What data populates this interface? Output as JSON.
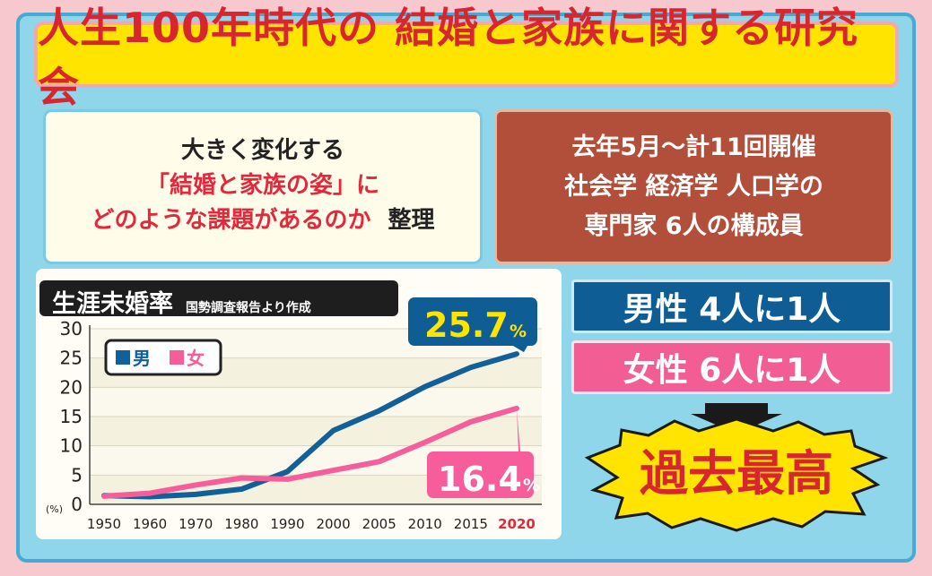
{
  "title": "人生100年時代の 結婚と家族に関する研究会",
  "intro": {
    "line1": "大きく変化する",
    "line2": "「結婚と家族の姿」に",
    "line3a": "どのような課題があるのか",
    "line3b": "整理"
  },
  "info": {
    "line1": "去年5月〜計11回開催",
    "line2": "社会学 経済学 人口学の",
    "line3": "専門家 6人の構成員"
  },
  "men_stat": "男性 4人に1人",
  "women_stat": "女性 6人に1人",
  "conclusion": "過去最高",
  "colors": {
    "men": "#11609a",
    "women": "#f65d9a",
    "highlight_year": "#e3283b"
  },
  "chart_data": {
    "type": "line",
    "title": "生涯未婚率",
    "subtitle": "国勢調査報告より作成",
    "y_unit": "(%)",
    "categories": [
      "1950",
      "1960",
      "1970",
      "1980",
      "1990",
      "2000",
      "2005",
      "2010",
      "2015",
      "2020"
    ],
    "highlight_category": "2020",
    "ylim": [
      0,
      30
    ],
    "y_ticks": [
      "0",
      "5",
      "10",
      "15",
      "20",
      "25",
      "30"
    ],
    "series": [
      {
        "name": "男",
        "values": [
          1.5,
          1.3,
          1.7,
          2.6,
          5.6,
          12.6,
          16.0,
          20.1,
          23.4,
          25.7
        ]
      },
      {
        "name": "女",
        "values": [
          1.4,
          1.9,
          3.3,
          4.5,
          4.3,
          5.8,
          7.3,
          10.6,
          14.1,
          16.4
        ]
      }
    ],
    "legend_position": "top-left",
    "labels": {
      "men_final": "25.7",
      "women_final": "16.4",
      "percent": "%"
    }
  }
}
